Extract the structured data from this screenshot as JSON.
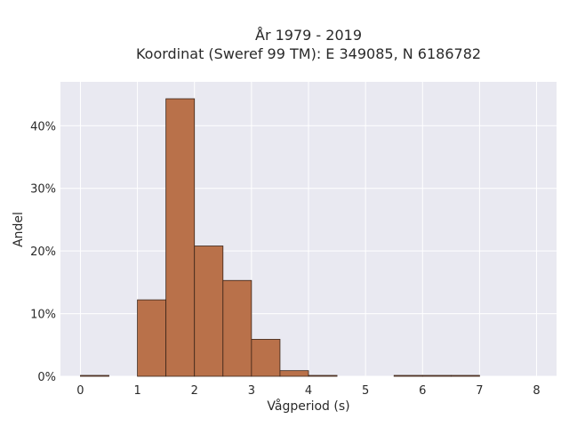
{
  "chart_data": {
    "type": "bar",
    "title_lines": [
      "År 1979 - 2019",
      "Koordinat (Sweref 99 TM): E 349085, N 6186782"
    ],
    "xlabel": "Vågperiod (s)",
    "ylabel": "Andel",
    "xlim": [
      -0.35,
      8.35
    ],
    "ylim": [
      0,
      0.47
    ],
    "x_ticks": [
      0,
      1,
      2,
      3,
      4,
      5,
      6,
      7,
      8
    ],
    "x_tick_labels": [
      "0",
      "1",
      "2",
      "3",
      "4",
      "5",
      "6",
      "7",
      "8"
    ],
    "y_ticks": [
      0,
      0.1,
      0.2,
      0.3,
      0.4
    ],
    "y_tick_labels": [
      "0%",
      "10%",
      "20%",
      "30%",
      "40%"
    ],
    "bin_width": 0.5,
    "bins": [
      {
        "x0": 0.0,
        "x1": 0.5,
        "value": 0.0005
      },
      {
        "x0": 1.0,
        "x1": 1.5,
        "value": 0.122
      },
      {
        "x0": 1.5,
        "x1": 2.0,
        "value": 0.443
      },
      {
        "x0": 2.0,
        "x1": 2.5,
        "value": 0.208
      },
      {
        "x0": 2.5,
        "x1": 3.0,
        "value": 0.153
      },
      {
        "x0": 3.0,
        "x1": 3.5,
        "value": 0.059
      },
      {
        "x0": 3.5,
        "x1": 4.0,
        "value": 0.009
      },
      {
        "x0": 4.0,
        "x1": 4.5,
        "value": 0.0005
      },
      {
        "x0": 5.5,
        "x1": 6.0,
        "value": 0.0005
      },
      {
        "x0": 6.0,
        "x1": 6.5,
        "value": 0.0005
      },
      {
        "x0": 6.5,
        "x1": 7.0,
        "value": 0.0005
      }
    ],
    "grid": true,
    "colors": {
      "bar_fill": "#b9714a",
      "bar_stroke": "#3a2418",
      "plot_background": "#e9e9f1",
      "grid": "#ffffff"
    }
  }
}
